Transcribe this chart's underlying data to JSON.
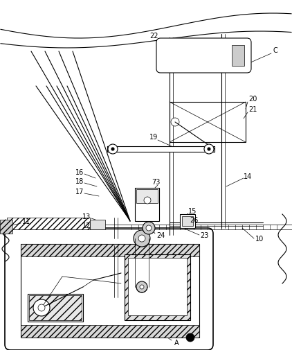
{
  "bg_color": "#ffffff",
  "line_color": "#000000",
  "fig_width": 4.22,
  "fig_height": 5.06,
  "dpi": 100
}
